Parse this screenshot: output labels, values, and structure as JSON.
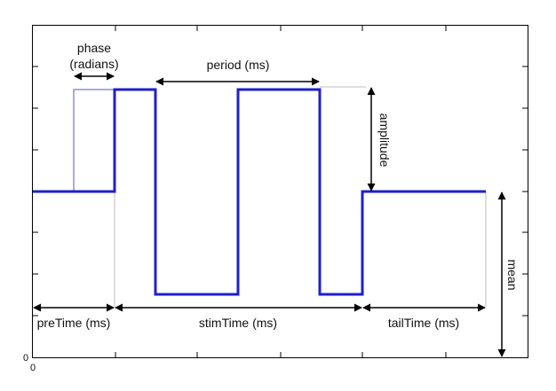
{
  "labels": {
    "phase_line1": "phase",
    "phase_line2": "(radians)",
    "period": "period (ms)",
    "amplitude": "amplitude",
    "mean": "mean",
    "pre_time": "preTime (ms)",
    "stim_time": "stimTime (ms)",
    "tail_time": "tailTime (ms)",
    "x_origin": "0",
    "y_origin": "0"
  },
  "colors": {
    "stimulus": "#1f1fcc",
    "phase_ghost": "#a9a9e6",
    "frame": "#000000",
    "guide": "#bdbdbd",
    "arrow": "#000000"
  },
  "icons": {
    "arrow": "double-headed-arrow"
  }
}
